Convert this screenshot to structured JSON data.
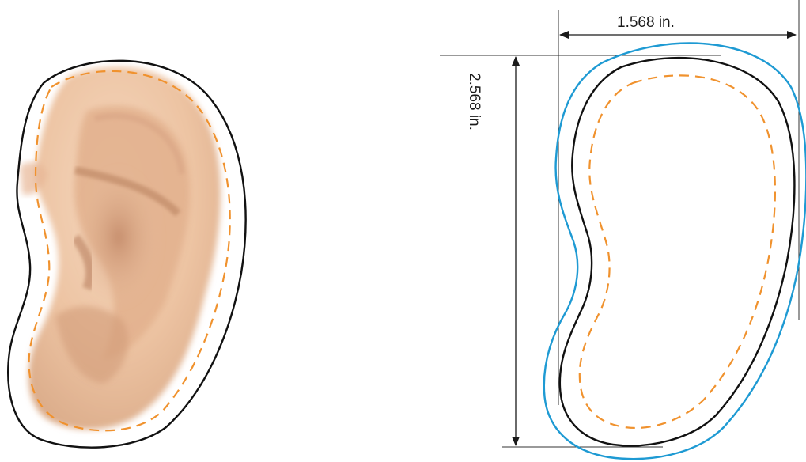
{
  "dimensions": {
    "width_label": "1.568 in.",
    "height_label": "2.568 in."
  },
  "colors": {
    "outline": "#111111",
    "dashed_guide": "#f0922e",
    "bleed_outline": "#1e9ad3",
    "skin_base": "#efc7a6"
  }
}
